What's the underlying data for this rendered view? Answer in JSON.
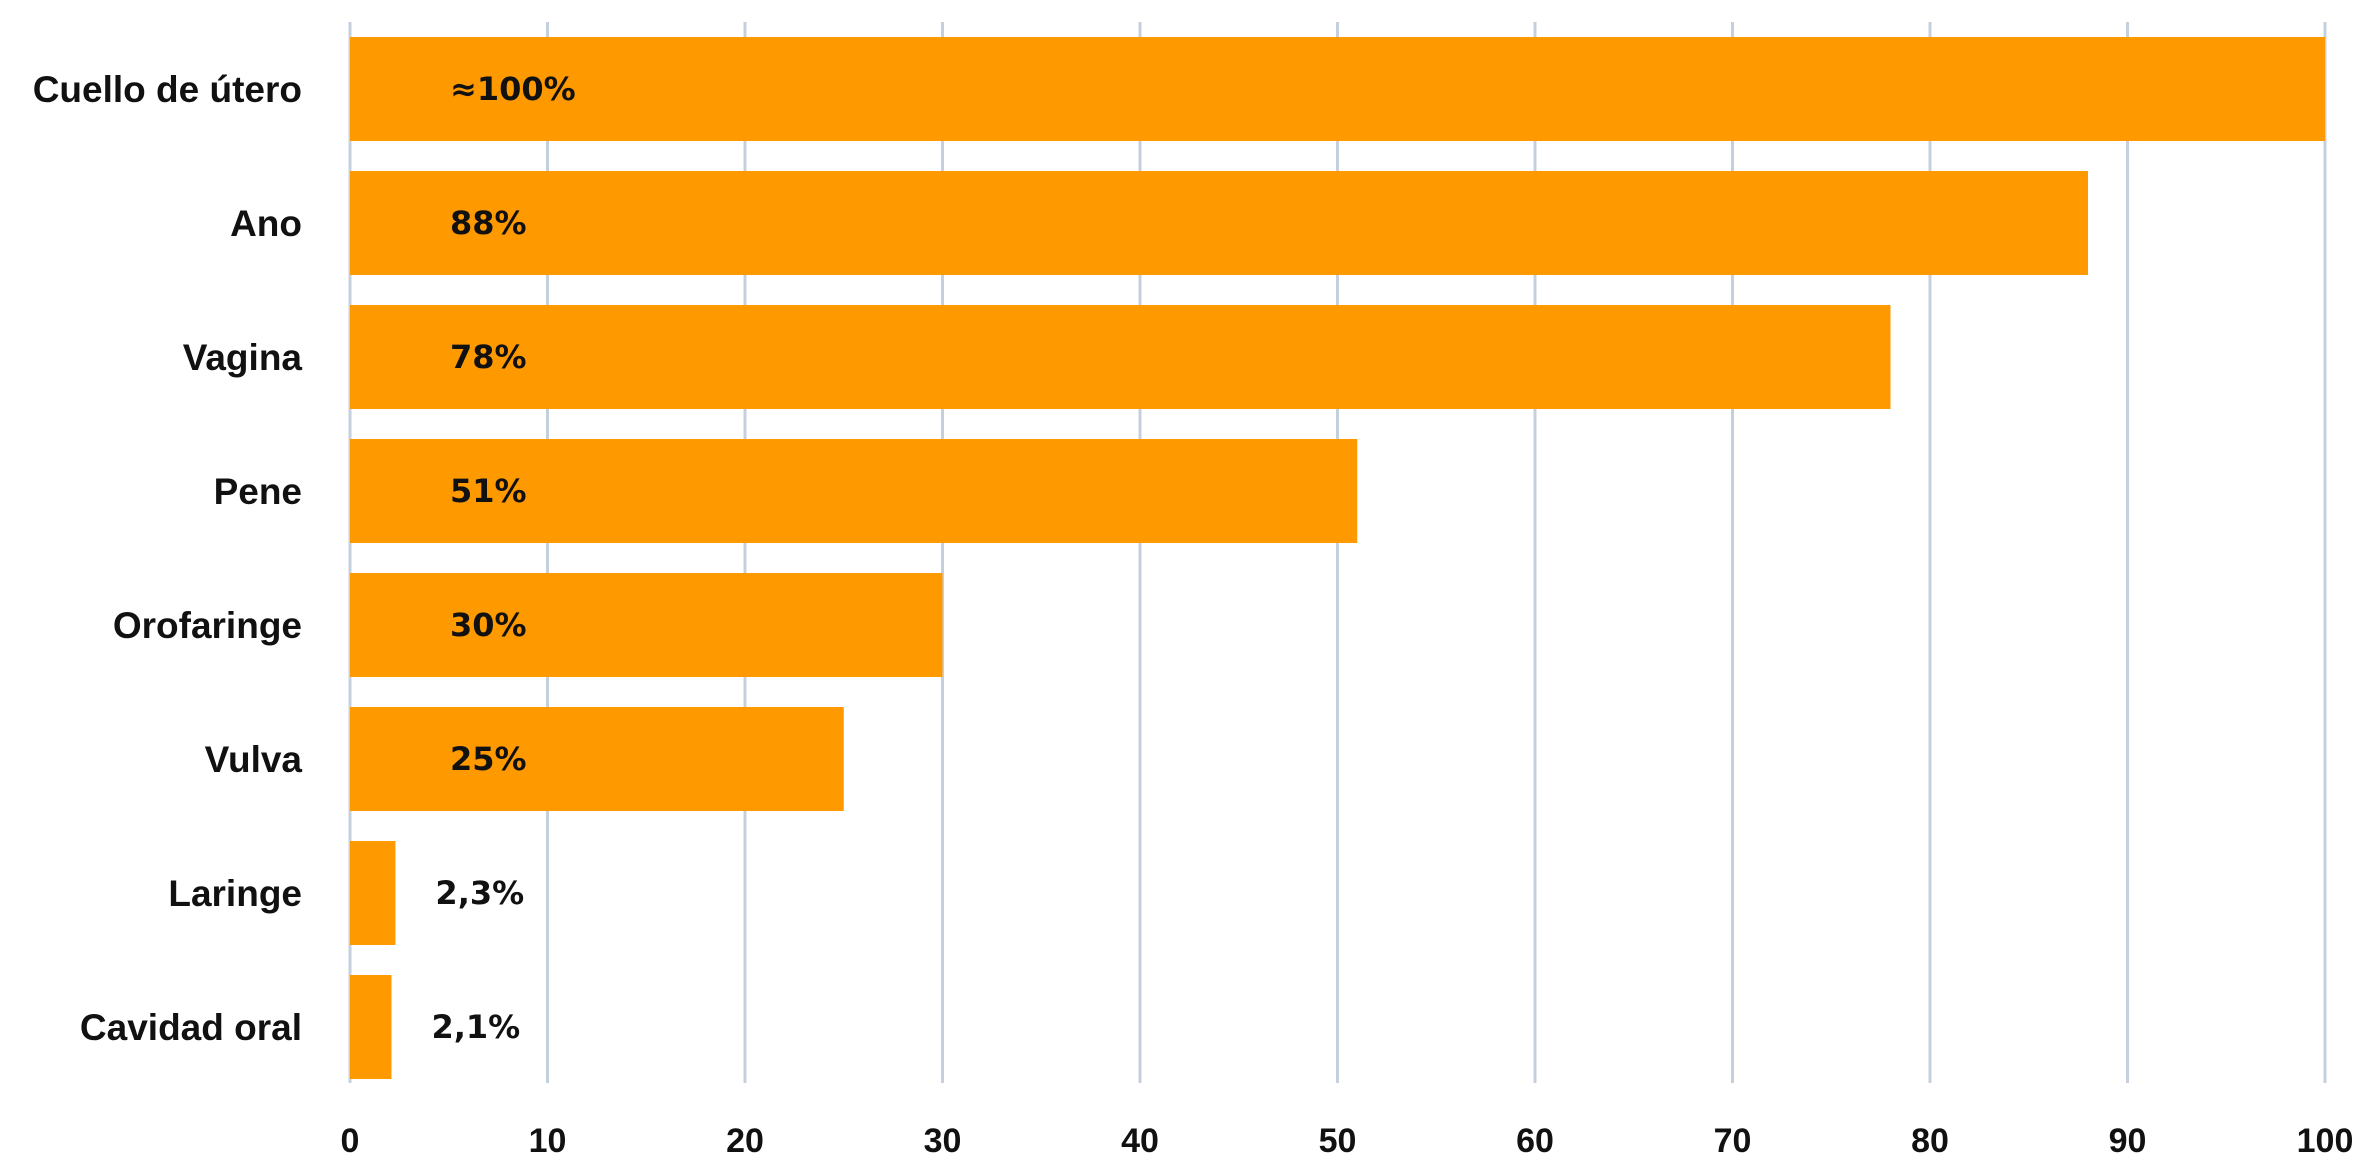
{
  "chart_data": {
    "type": "bar",
    "orientation": "horizontal",
    "categories": [
      "Cuello de útero",
      "Ano",
      "Vagina",
      "Pene",
      "Orofaringe",
      "Vulva",
      "Laringe",
      "Cavidad oral"
    ],
    "values": [
      100,
      88,
      78,
      51,
      30,
      25,
      2.3,
      2.1
    ],
    "data_labels": [
      "≈100%",
      "88%",
      "78%",
      "51%",
      "30%",
      "25%",
      "2,3%",
      "2,1%"
    ],
    "xlim": [
      0,
      100
    ],
    "xticks": [
      0,
      10,
      20,
      30,
      40,
      50,
      60,
      70,
      80,
      90,
      100
    ],
    "xtick_labels": [
      "0",
      "10",
      "20",
      "30",
      "40",
      "50",
      "60",
      "70",
      "80",
      "90",
      "100"
    ],
    "grid": true,
    "legend": "none",
    "title": "",
    "xlabel": "",
    "ylabel": "",
    "colors": {
      "bar": "#ff9900",
      "grid": "#c5d0de",
      "text": "#111111"
    }
  }
}
